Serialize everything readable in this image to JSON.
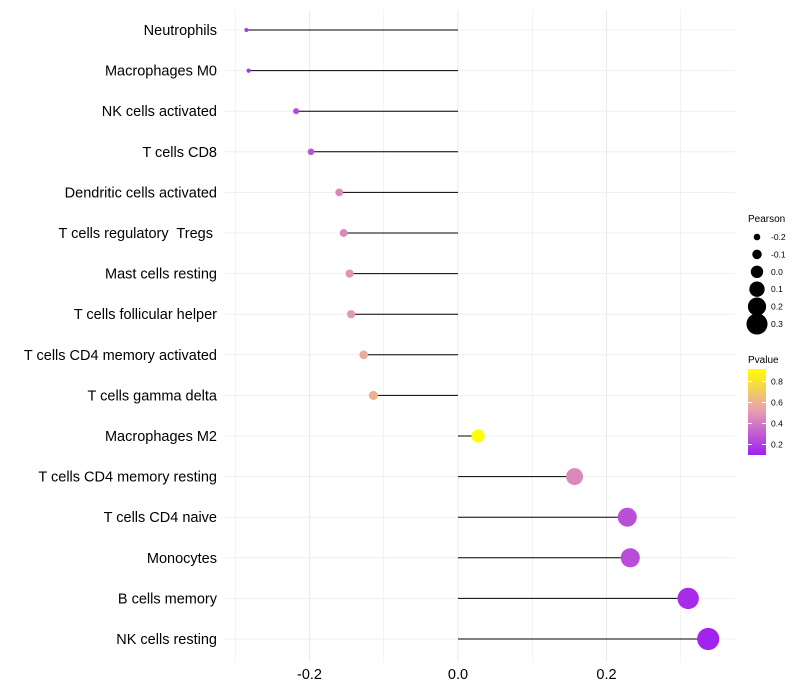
{
  "chart_data": {
    "type": "lollipop",
    "title": "",
    "xlabel": "",
    "ylabel": "",
    "xlim": [
      -0.305,
      0.355
    ],
    "xticks": [
      -0.2,
      0.0,
      0.2
    ],
    "xtick_labels": [
      "-0.2",
      "0.0",
      "0.2"
    ],
    "grid": true,
    "baseline": 0.0,
    "categories": [
      "Neutrophils",
      "Macrophages M0",
      "NK cells activated",
      "T cells CD8",
      "Dendritic cells activated",
      "T cells regulatory  Tregs ",
      "Mast cells resting",
      "T cells follicular helper",
      "T cells CD4 memory activated",
      "T cells gamma delta",
      "Macrophages M2",
      "T cells CD4 memory resting",
      "T cells CD4 naive",
      "Monocytes",
      "B cells memory",
      "NK cells resting"
    ],
    "pearson": [
      -0.285,
      -0.282,
      -0.218,
      -0.198,
      -0.16,
      -0.154,
      -0.146,
      -0.144,
      -0.127,
      -0.114,
      0.027,
      0.157,
      0.228,
      0.232,
      0.31,
      0.337
    ],
    "pvalue": [
      0.18,
      0.17,
      0.24,
      0.27,
      0.45,
      0.45,
      0.48,
      0.5,
      0.57,
      0.6,
      0.92,
      0.45,
      0.26,
      0.25,
      0.14,
      0.11
    ],
    "legend_size": {
      "title": "Pearson",
      "values": [
        -0.2,
        -0.1,
        0.0,
        0.1,
        0.2,
        0.3
      ],
      "labels": [
        "-0.2",
        "-0.1",
        "0.0",
        "0.1",
        "0.2",
        "0.3"
      ]
    },
    "legend_color": {
      "title": "Pvalue",
      "range": [
        0.1,
        0.92
      ],
      "ticks": [
        0.8,
        0.6,
        0.4,
        0.2
      ],
      "tick_labels": [
        "0.8",
        "0.6",
        "0.4",
        "0.2"
      ],
      "low_color": "#a020f0",
      "mid_color": "#e8a0b0",
      "high_color": "#ffff00"
    },
    "legend_position": "right",
    "line_color": "#000000",
    "grid_color": "#ebebeb"
  }
}
